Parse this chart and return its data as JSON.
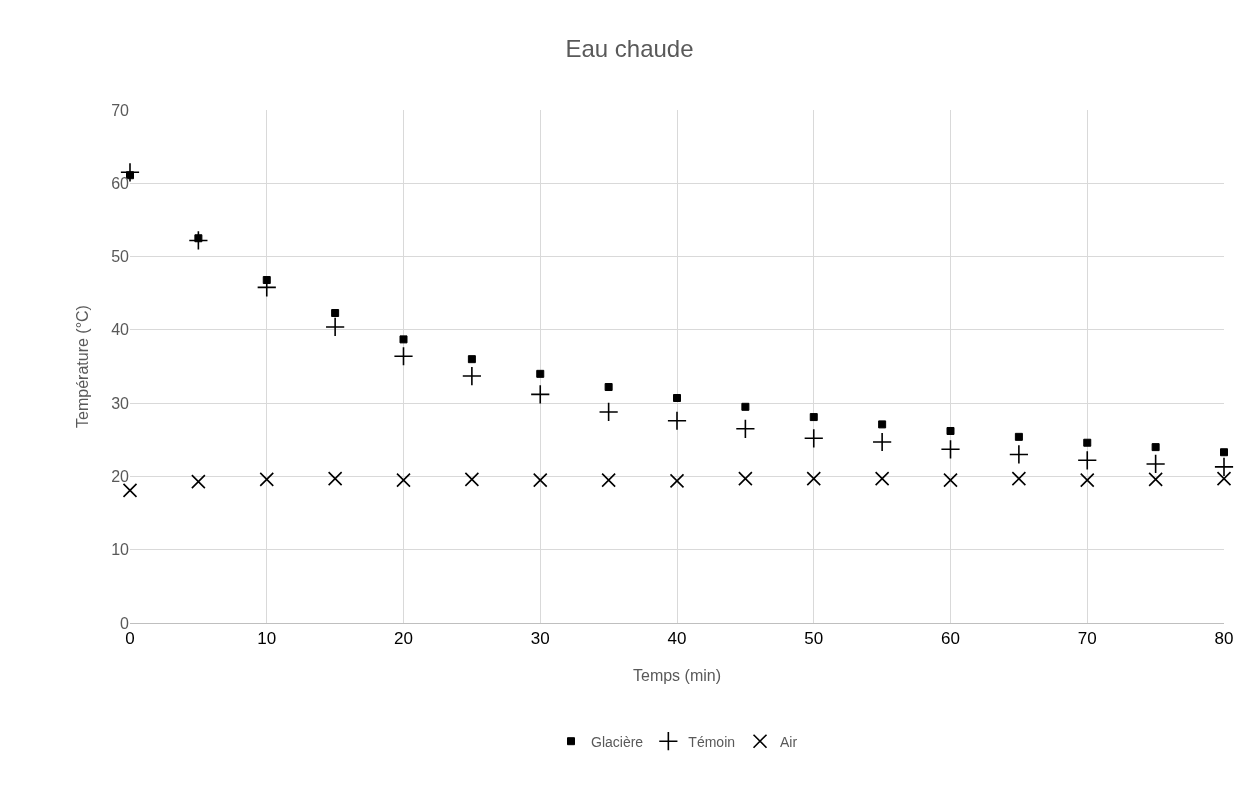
{
  "chart_data": {
    "type": "scatter",
    "title": "Eau chaude",
    "xlabel": "Temps (min)",
    "ylabel": "Température (°C)",
    "x": [
      0,
      5,
      10,
      15,
      20,
      25,
      30,
      35,
      40,
      45,
      50,
      55,
      60,
      65,
      70,
      75,
      80
    ],
    "series": [
      {
        "name": "Glacière",
        "color": "#000000",
        "marker": "square",
        "values": [
          61.1,
          52.5,
          46.8,
          42.3,
          38.7,
          36.0,
          34.0,
          32.2,
          30.7,
          29.5,
          28.1,
          27.1,
          26.2,
          25.4,
          24.6,
          24.0,
          23.3
        ]
      },
      {
        "name": "Témoin",
        "color": "#000000",
        "marker": "cross",
        "values": [
          61.5,
          52.2,
          45.8,
          40.4,
          36.4,
          33.7,
          31.2,
          28.8,
          27.6,
          26.5,
          25.2,
          24.7,
          23.7,
          23.0,
          22.2,
          21.7,
          21.3
        ]
      },
      {
        "name": "Air",
        "color": "#000000",
        "marker": "x",
        "values": [
          18.1,
          19.3,
          19.6,
          19.7,
          19.5,
          19.6,
          19.5,
          19.5,
          19.4,
          19.7,
          19.7,
          19.7,
          19.5,
          19.7,
          19.5,
          19.6,
          19.7
        ]
      }
    ],
    "xlim": [
      0,
      80
    ],
    "xticks": [
      0,
      10,
      20,
      30,
      40,
      50,
      60,
      70,
      80
    ],
    "ylim": [
      0,
      70
    ],
    "yticks": [
      0,
      10,
      20,
      30,
      40,
      50,
      60,
      70
    ],
    "grid": true,
    "legend": "bottom"
  }
}
